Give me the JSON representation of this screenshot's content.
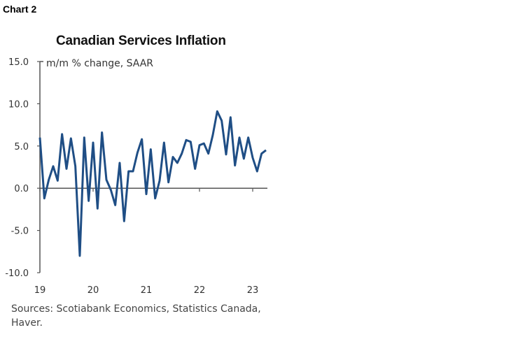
{
  "header": {
    "chart_label": "Chart 2"
  },
  "chart_data": {
    "type": "line",
    "title": "Canadian Services Inflation",
    "ylabel": "m/m % change, SAAR",
    "xlabel": "",
    "ylim": [
      -10,
      15
    ],
    "yticks": [
      "15.0",
      "10.0",
      "5.0",
      "0.0",
      "-5.0",
      "-10.0"
    ],
    "ytick_values": [
      15,
      10,
      5,
      0,
      -5,
      -10
    ],
    "xticks": [
      "19",
      "20",
      "21",
      "22",
      "23"
    ],
    "x_start": "2019-01",
    "frequency": "monthly",
    "color": "#1f4e85",
    "grid": false,
    "series": [
      {
        "values": [
          6.0,
          -1.2,
          1.0,
          2.6,
          0.9,
          6.4,
          2.3,
          5.9,
          2.6,
          -8.0,
          6.0,
          -1.5,
          5.4,
          -2.4,
          6.6,
          1.0,
          -0.2,
          -2.0,
          3.0,
          -3.9,
          2.0,
          2.0,
          4.2,
          5.8,
          -0.7,
          4.6,
          -1.2,
          0.9,
          5.4,
          0.7,
          3.7,
          3.0,
          4.1,
          5.7,
          5.5,
          2.3,
          5.1,
          5.3,
          4.1,
          6.3,
          9.1,
          8.0,
          4.0,
          8.4,
          2.7,
          6.0,
          3.5,
          6.0,
          3.6,
          2.0,
          4.1,
          4.5
        ]
      }
    ]
  },
  "footer": {
    "sources": "Sources: Scotiabank Economics, Statistics Canada, Haver."
  }
}
